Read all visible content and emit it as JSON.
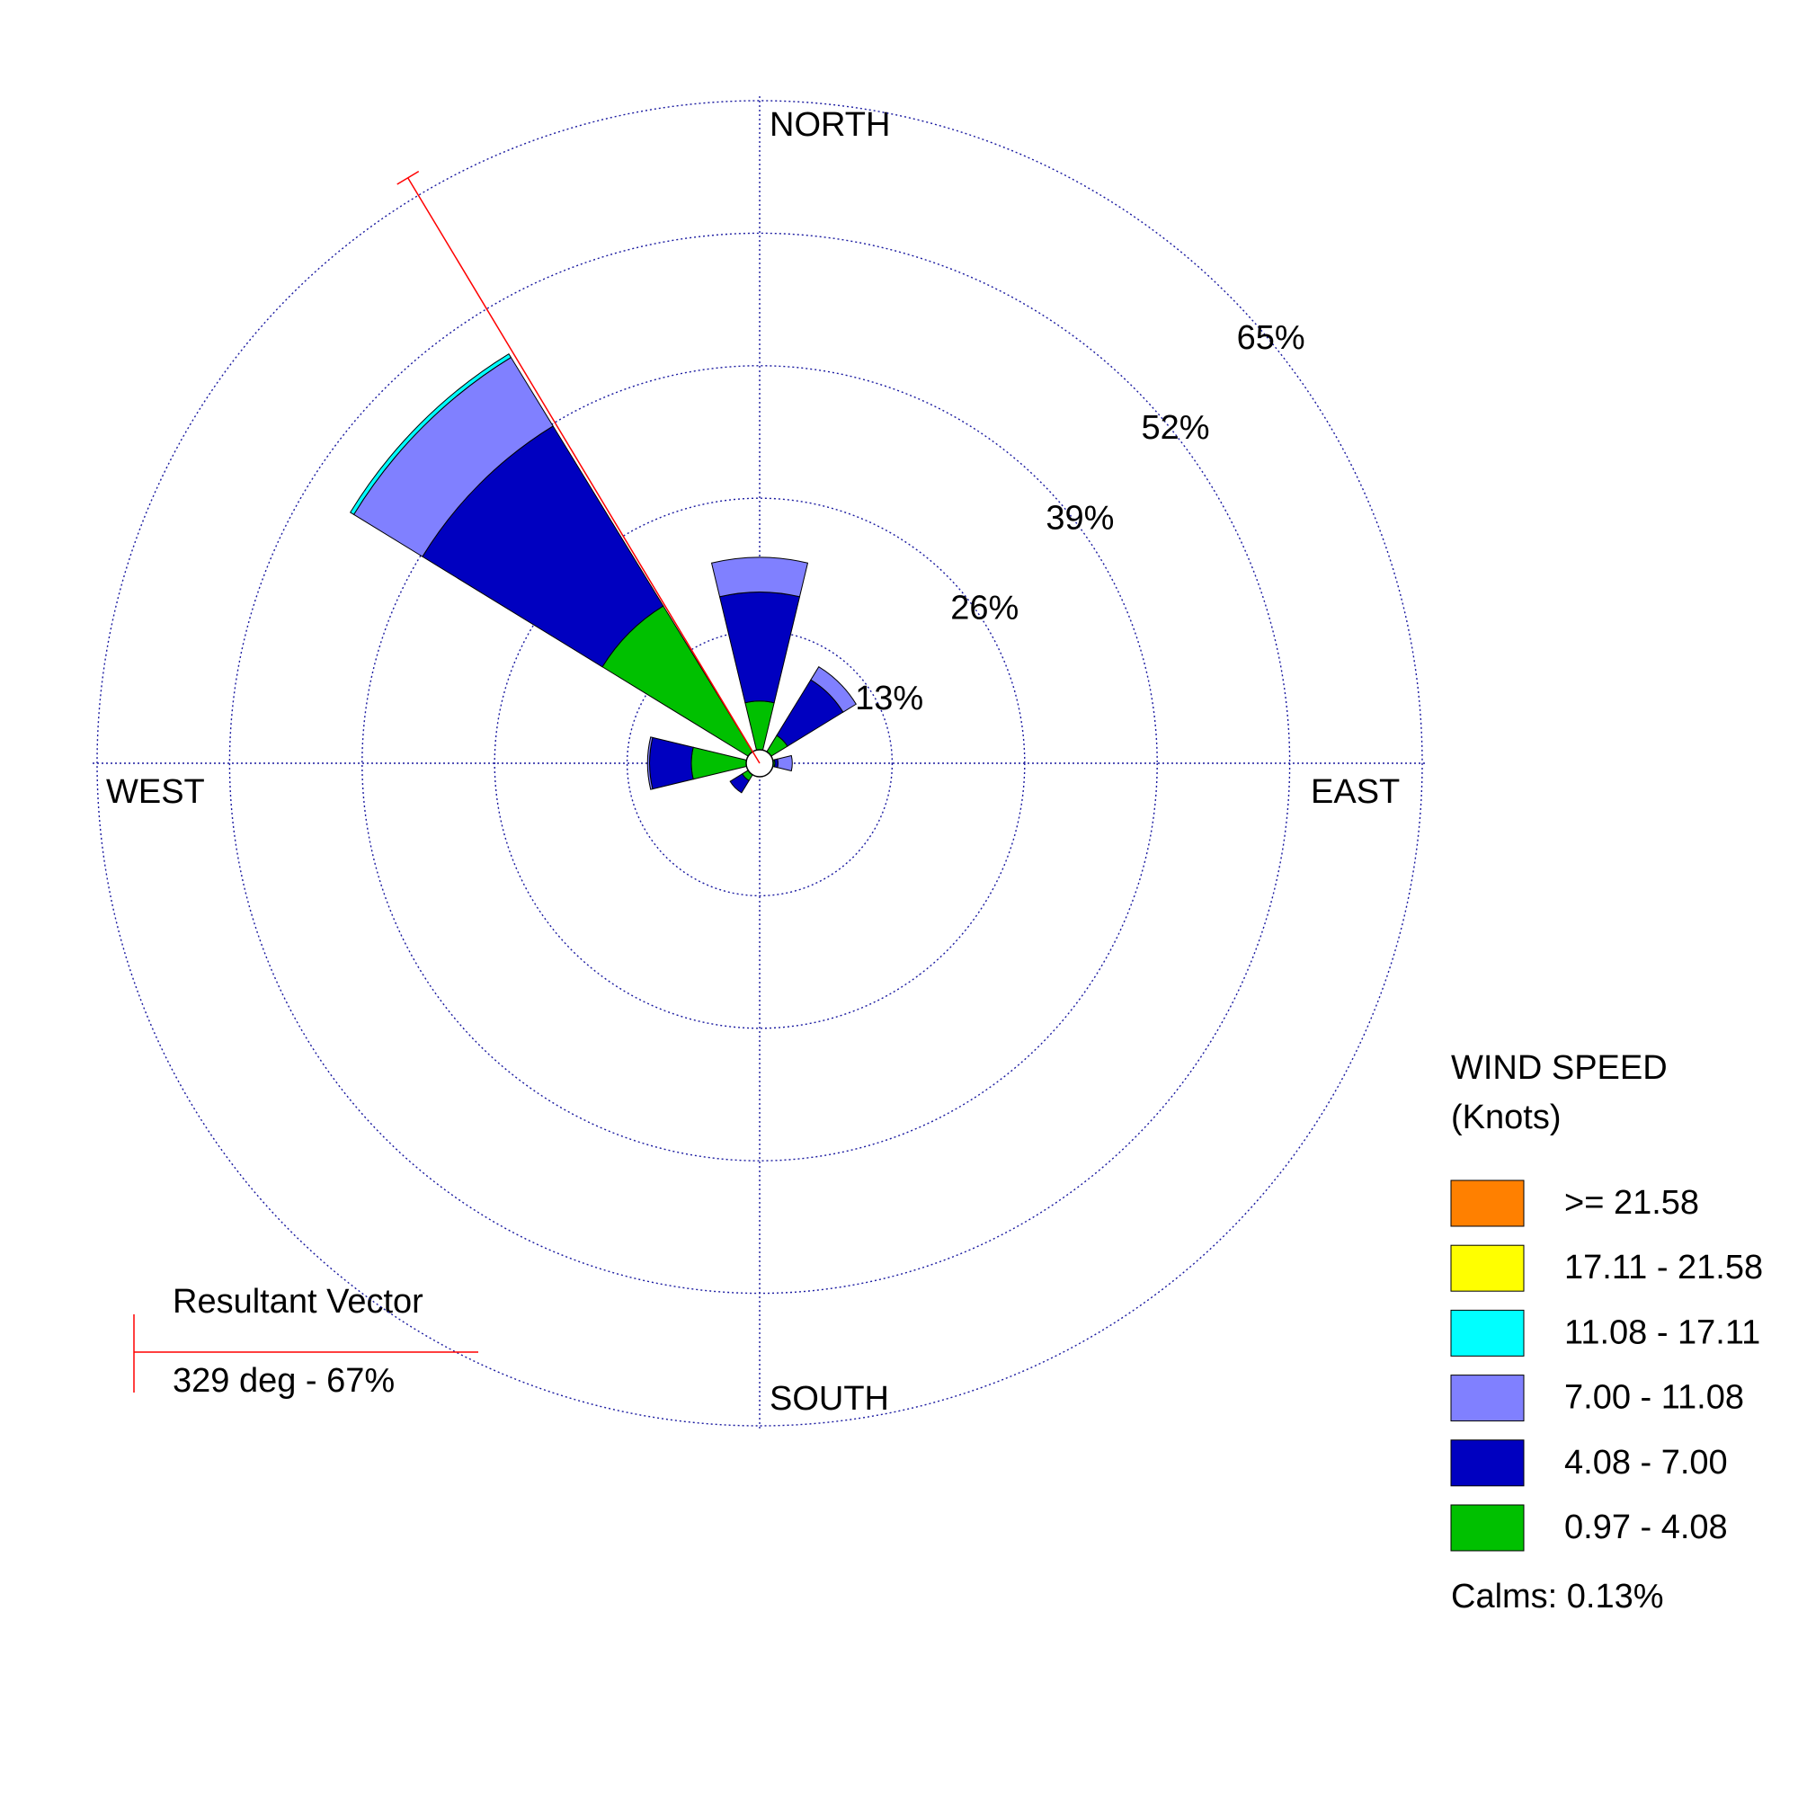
{
  "chart_data": {
    "type": "windrose",
    "directions": [
      0,
      45,
      90,
      135,
      180,
      225,
      270,
      315
    ],
    "rlim": [
      0,
      65
    ],
    "rticks": [
      {
        "value": 13,
        "label": "13%"
      },
      {
        "value": 26,
        "label": "26%"
      },
      {
        "value": 39,
        "label": "39%"
      },
      {
        "value": 52,
        "label": "52%"
      },
      {
        "value": 65,
        "label": "65%"
      }
    ],
    "compass": {
      "north": "NORTH",
      "east": "EAST",
      "south": "SOUTH",
      "west": "WEST"
    },
    "series": [
      {
        "name": "0.97 - 4.08",
        "color": "#00c000",
        "values": [
          6.1,
          3.2,
          1.5,
          0,
          0,
          2.0,
          6.7,
          18.1
        ]
      },
      {
        "name": "4.08 - 7.00",
        "color": "#0000c0",
        "values": [
          10.7,
          6.4,
          0.3,
          0,
          0,
          1.4,
          4.1,
          20.7
        ]
      },
      {
        "name": "7.00 - 11.08",
        "color": "#8080ff",
        "values": [
          3.4,
          1.5,
          1.4,
          0,
          0,
          0,
          0.2,
          7.9
        ]
      },
      {
        "name": "11.08 - 17.11",
        "color": "#00ffff",
        "values": [
          0,
          0,
          0,
          0,
          0,
          0,
          0,
          0.4
        ]
      },
      {
        "name": "17.11 - 21.58",
        "color": "#ffff00",
        "values": [
          0,
          0,
          0,
          0,
          0,
          0,
          0,
          0
        ]
      },
      {
        "name": ">= 21.58",
        "color": "#ff8000",
        "values": [
          0,
          0,
          0,
          0,
          0,
          0,
          0,
          0
        ]
      }
    ],
    "legend_title": "WIND SPEED",
    "legend_subtitle": "(Knots)",
    "calms": "Calms: 0.13%",
    "resultant": {
      "label": "Resultant Vector",
      "text": "329 deg - 67%",
      "direction": 329,
      "magnitude": 67,
      "color": "#ff0000"
    }
  }
}
